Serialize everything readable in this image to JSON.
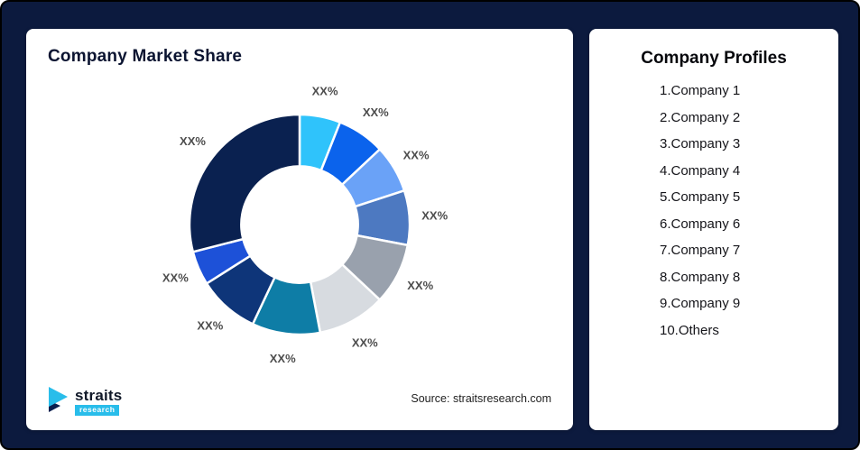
{
  "frame": {
    "bg_color": "#0c1a3e"
  },
  "market_share_card": {
    "title": "Company Market Share",
    "source": "Source: straitsresearch.com",
    "logo": {
      "brand": "straits",
      "sub": "research"
    }
  },
  "profiles_card": {
    "title": "Company Profiles",
    "items": [
      "1.Company 1",
      "2.Company 2",
      "3.Company 3",
      "4.Company 4",
      "5.Company 5",
      "6.Company 6",
      "7.Company 7",
      "8.Company 8",
      "9.Company 9",
      "10.Others"
    ]
  },
  "chart_data": {
    "type": "pie",
    "subtype": "donut",
    "title": "Company Market Share",
    "legend": false,
    "inner_radius_ratio": 0.53,
    "start_angle_deg": 0,
    "direction": "clockwise",
    "slices": [
      {
        "name": "Company 1",
        "label": "XX%",
        "value": 6,
        "color": "#2fc3fb"
      },
      {
        "name": "Company 2",
        "label": "XX%",
        "value": 7,
        "color": "#0b63ec"
      },
      {
        "name": "Company 3",
        "label": "XX%",
        "value": 7,
        "color": "#6aa2f7"
      },
      {
        "name": "Company 4",
        "label": "XX%",
        "value": 8,
        "color": "#4d79c1"
      },
      {
        "name": "Company 5",
        "label": "XX%",
        "value": 9,
        "color": "#99a1ad"
      },
      {
        "name": "Company 6",
        "label": "XX%",
        "value": 10,
        "color": "#d7dbe0"
      },
      {
        "name": "Company 7",
        "label": "XX%",
        "value": 10,
        "color": "#0e7da6"
      },
      {
        "name": "Company 8",
        "label": "XX%",
        "value": 9,
        "color": "#0e3579"
      },
      {
        "name": "Company 9",
        "label": "XX%",
        "value": 5,
        "color": "#1d51d8"
      },
      {
        "name": "Others",
        "label": "XX%",
        "value": 29,
        "color": "#0a2150"
      }
    ],
    "source": "straitsresearch.com"
  }
}
